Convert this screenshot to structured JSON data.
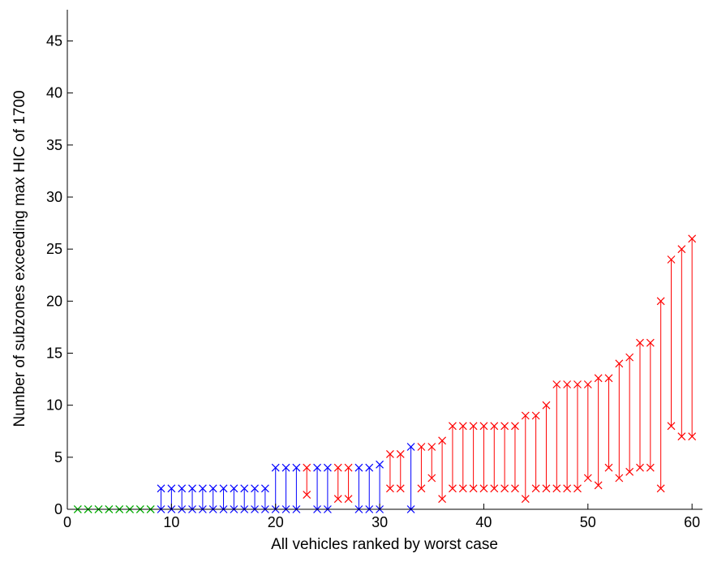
{
  "chart_data": {
    "type": "scatter",
    "title": "",
    "xlabel": "All vehicles ranked by worst case",
    "ylabel": "Number of subzones exceeding max HIC of 1700",
    "xlim": [
      0,
      61
    ],
    "ylim": [
      0,
      48
    ],
    "xticks": [
      0,
      10,
      20,
      30,
      40,
      50,
      60
    ],
    "yticks": [
      0,
      5,
      10,
      15,
      20,
      25,
      30,
      35,
      40,
      45
    ],
    "grid": false,
    "marker": "x",
    "colors": {
      "green": "#00aa00",
      "blue": "#0000ff",
      "red": "#ff0000"
    },
    "series": [
      {
        "color": "green",
        "points": [
          {
            "x": 1,
            "low": 0,
            "high": 0
          },
          {
            "x": 2,
            "low": 0,
            "high": 0
          },
          {
            "x": 3,
            "low": 0,
            "high": 0
          },
          {
            "x": 4,
            "low": 0,
            "high": 0
          },
          {
            "x": 5,
            "low": 0,
            "high": 0
          },
          {
            "x": 6,
            "low": 0,
            "high": 0
          },
          {
            "x": 7,
            "low": 0,
            "high": 0
          },
          {
            "x": 8,
            "low": 0,
            "high": 0
          }
        ]
      },
      {
        "color": "blue",
        "points": [
          {
            "x": 9,
            "low": 0,
            "high": 2
          },
          {
            "x": 10,
            "low": 0,
            "high": 2
          },
          {
            "x": 11,
            "low": 0,
            "high": 2
          },
          {
            "x": 12,
            "low": 0,
            "high": 2
          },
          {
            "x": 13,
            "low": 0,
            "high": 2
          },
          {
            "x": 14,
            "low": 0,
            "high": 2
          },
          {
            "x": 15,
            "low": 0,
            "high": 2
          },
          {
            "x": 16,
            "low": 0,
            "high": 2
          },
          {
            "x": 17,
            "low": 0,
            "high": 2
          },
          {
            "x": 18,
            "low": 0,
            "high": 2
          },
          {
            "x": 19,
            "low": 0,
            "high": 2
          },
          {
            "x": 20,
            "low": 0,
            "high": 4
          },
          {
            "x": 21,
            "low": 0,
            "high": 4
          },
          {
            "x": 22,
            "low": 0,
            "high": 4
          },
          {
            "x": 24,
            "low": 0,
            "high": 4
          },
          {
            "x": 25,
            "low": 0,
            "high": 4
          },
          {
            "x": 28,
            "low": 0,
            "high": 4
          },
          {
            "x": 29,
            "low": 0,
            "high": 4
          },
          {
            "x": 30,
            "low": 0,
            "high": 4.3
          },
          {
            "x": 33,
            "low": 0,
            "high": 6
          }
        ]
      },
      {
        "color": "red",
        "points": [
          {
            "x": 23,
            "low": 1.4,
            "high": 4
          },
          {
            "x": 26,
            "low": 1,
            "high": 4
          },
          {
            "x": 27,
            "low": 1,
            "high": 4
          },
          {
            "x": 31,
            "low": 2,
            "high": 5.3
          },
          {
            "x": 32,
            "low": 2,
            "high": 5.3
          },
          {
            "x": 34,
            "low": 2,
            "high": 6
          },
          {
            "x": 35,
            "low": 3,
            "high": 6
          },
          {
            "x": 36,
            "low": 1,
            "high": 6.6
          },
          {
            "x": 37,
            "low": 2,
            "high": 8
          },
          {
            "x": 38,
            "low": 2,
            "high": 8
          },
          {
            "x": 39,
            "low": 2,
            "high": 8
          },
          {
            "x": 40,
            "low": 2,
            "high": 8
          },
          {
            "x": 41,
            "low": 2,
            "high": 8
          },
          {
            "x": 42,
            "low": 2,
            "high": 8
          },
          {
            "x": 43,
            "low": 2,
            "high": 8
          },
          {
            "x": 44,
            "low": 1,
            "high": 9
          },
          {
            "x": 45,
            "low": 2,
            "high": 9
          },
          {
            "x": 46,
            "low": 2,
            "high": 10
          },
          {
            "x": 47,
            "low": 2,
            "high": 12
          },
          {
            "x": 48,
            "low": 2,
            "high": 12
          },
          {
            "x": 49,
            "low": 2,
            "high": 12
          },
          {
            "x": 50,
            "low": 3,
            "high": 12
          },
          {
            "x": 51,
            "low": 2.3,
            "high": 12.6
          },
          {
            "x": 52,
            "low": 4,
            "high": 12.6
          },
          {
            "x": 53,
            "low": 3,
            "high": 14
          },
          {
            "x": 54,
            "low": 3.6,
            "high": 14.6
          },
          {
            "x": 55,
            "low": 4,
            "high": 16
          },
          {
            "x": 56,
            "low": 4,
            "high": 16
          },
          {
            "x": 57,
            "low": 2,
            "high": 20
          },
          {
            "x": 58,
            "low": 8,
            "high": 24
          },
          {
            "x": 59,
            "low": 7,
            "high": 25
          },
          {
            "x": 60,
            "low": 7,
            "high": 26
          }
        ]
      }
    ]
  }
}
